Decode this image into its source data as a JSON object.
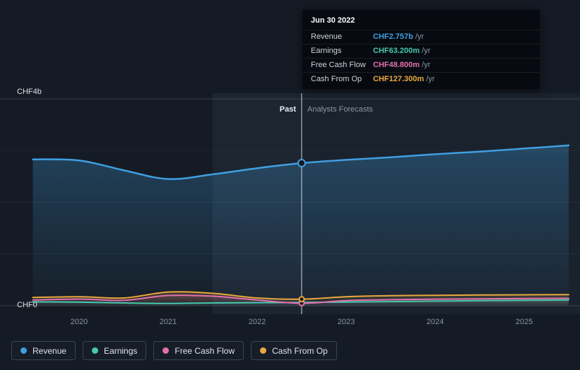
{
  "tooltip": {
    "title": "Jun 30 2022",
    "rows": [
      {
        "label": "Revenue",
        "value": "CHF2.757b",
        "suffix": "/yr",
        "color": "#3f9fe0"
      },
      {
        "label": "Earnings",
        "value": "CHF63.200m",
        "suffix": "/yr",
        "color": "#46c8ae"
      },
      {
        "label": "Free Cash Flow",
        "value": "CHF48.800m",
        "suffix": "/yr",
        "color": "#e371ae"
      },
      {
        "label": "Cash From Op",
        "value": "CHF127.300m",
        "suffix": "/yr",
        "color": "#e9a83c"
      }
    ]
  },
  "axes": {
    "y_top_label": "CHF4b",
    "y_bottom_label": "CHF0",
    "x_ticks": [
      "2020",
      "2021",
      "2022",
      "2023",
      "2024",
      "2025"
    ]
  },
  "annotations": {
    "past_label": "Past",
    "forecast_label": "Analysts Forecasts"
  },
  "legend": [
    {
      "label": "Revenue",
      "color": "#3f9fe0"
    },
    {
      "label": "Earnings",
      "color": "#46c8ae"
    },
    {
      "label": "Free Cash Flow",
      "color": "#e371ae"
    },
    {
      "label": "Cash From Op",
      "color": "#e9a83c"
    }
  ],
  "chart_data": {
    "type": "area",
    "unit": "CHF millions per year",
    "x_range": [
      2019.48,
      2025.5
    ],
    "x_ticks": [
      2020,
      2021,
      2022,
      2023,
      2024,
      2025
    ],
    "y_range": [
      0,
      4000
    ],
    "y_gridlines": [
      0,
      1000,
      2000,
      3000,
      4000
    ],
    "y_top_label": "CHF4b",
    "y_bottom_label": "CHF0",
    "divider_x": 2022.5,
    "divider_date": "Jun 30 2022",
    "highlight_band": [
      2021.5,
      2022.5
    ],
    "past_label": "Past",
    "forecast_label": "Analysts Forecasts",
    "x": [
      2019.48,
      2020,
      2020.5,
      2021,
      2021.5,
      2022,
      2022.5,
      2023,
      2023.5,
      2024,
      2024.5,
      2025,
      2025.5
    ],
    "series": [
      {
        "name": "Revenue",
        "color": "#3f9fe0",
        "values": [
          2830,
          2810,
          2620,
          2450,
          2540,
          2660,
          2757,
          2820,
          2870,
          2930,
          2980,
          3040,
          3100
        ]
      },
      {
        "name": "Earnings",
        "color": "#46c8ae",
        "values": [
          75,
          70,
          55,
          45,
          55,
          60,
          63.2,
          72,
          80,
          90,
          98,
          106,
          112
        ]
      },
      {
        "name": "Free Cash Flow",
        "color": "#e371ae",
        "values": [
          110,
          130,
          105,
          200,
          185,
          110,
          48.8,
          100,
          118,
          128,
          134,
          140,
          145
        ]
      },
      {
        "name": "Cash From Op",
        "color": "#e9a83c",
        "values": [
          160,
          175,
          150,
          265,
          240,
          150,
          127.3,
          175,
          195,
          202,
          208,
          212,
          216
        ]
      }
    ]
  }
}
